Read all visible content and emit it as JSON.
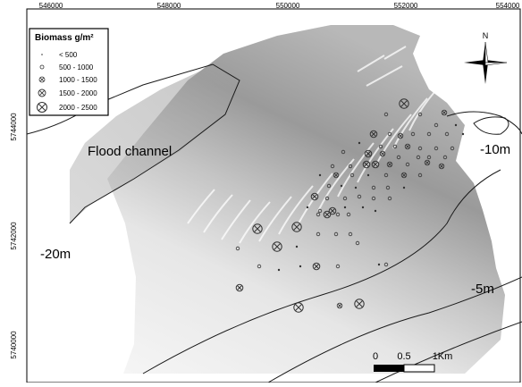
{
  "axes": {
    "top_ticks": [
      "546000",
      "548000",
      "550000",
      "552000",
      "554000"
    ],
    "left_ticks": [
      "5744000",
      "5742000",
      "5740000"
    ]
  },
  "legend": {
    "title": "Biomass g/m²",
    "items": [
      {
        "label": "< 500",
        "symbol": "dot"
      },
      {
        "label": "500 - 1000",
        "symbol": "small-circle-x"
      },
      {
        "label": "1000 - 1500",
        "symbol": "circle-x"
      },
      {
        "label": "1500 - 2000",
        "symbol": "circle-x"
      },
      {
        "label": "2000 - 2500",
        "symbol": "circle-x"
      }
    ]
  },
  "labels": {
    "flood_channel": "Flood channel",
    "depth_10": "-10m",
    "depth_20": "-20m",
    "depth_5": "-5m"
  },
  "north_arrow": {
    "label": "N"
  },
  "scale_bar": {
    "labels": [
      "0",
      "0.5",
      "1Km"
    ]
  },
  "colors": {
    "bathymetry_dark": "#8e8e8e",
    "bathymetry_light": "#f4f4f4",
    "contour": "#1a1a1a",
    "symbol": "#333333"
  }
}
